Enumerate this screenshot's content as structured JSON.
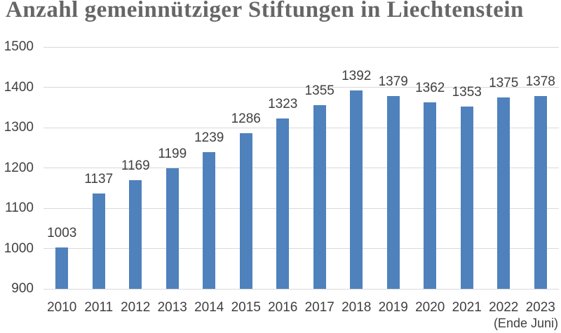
{
  "title": "Anzahl gemeinnütziger Stiftungen in Liechtenstein",
  "chart_data": {
    "type": "bar",
    "title": "Anzahl gemeinnütziger Stiftungen in Liechtenstein",
    "categories": [
      "2010",
      "2011",
      "2012",
      "2013",
      "2014",
      "2015",
      "2016",
      "2017",
      "2018",
      "2019",
      "2020",
      "2021",
      "2022",
      "2023"
    ],
    "values": [
      1003,
      1137,
      1169,
      1199,
      1239,
      1286,
      1323,
      1355,
      1392,
      1379,
      1362,
      1353,
      1375,
      1378
    ],
    "x_note": "(Ende Juni)",
    "x_note_applies_to": "2023",
    "xlabel": "",
    "ylabel": "",
    "ylim": [
      900,
      1500
    ],
    "yticks": [
      900,
      1000,
      1100,
      1200,
      1300,
      1400,
      1500
    ],
    "grid": true,
    "legend": "none",
    "data_labels_shown": true,
    "colors": {
      "bar": "#4F81BD",
      "gridline": "#D9D9D9",
      "tick_label": "#404040",
      "data_label": "#404040",
      "title": "#666666"
    }
  }
}
